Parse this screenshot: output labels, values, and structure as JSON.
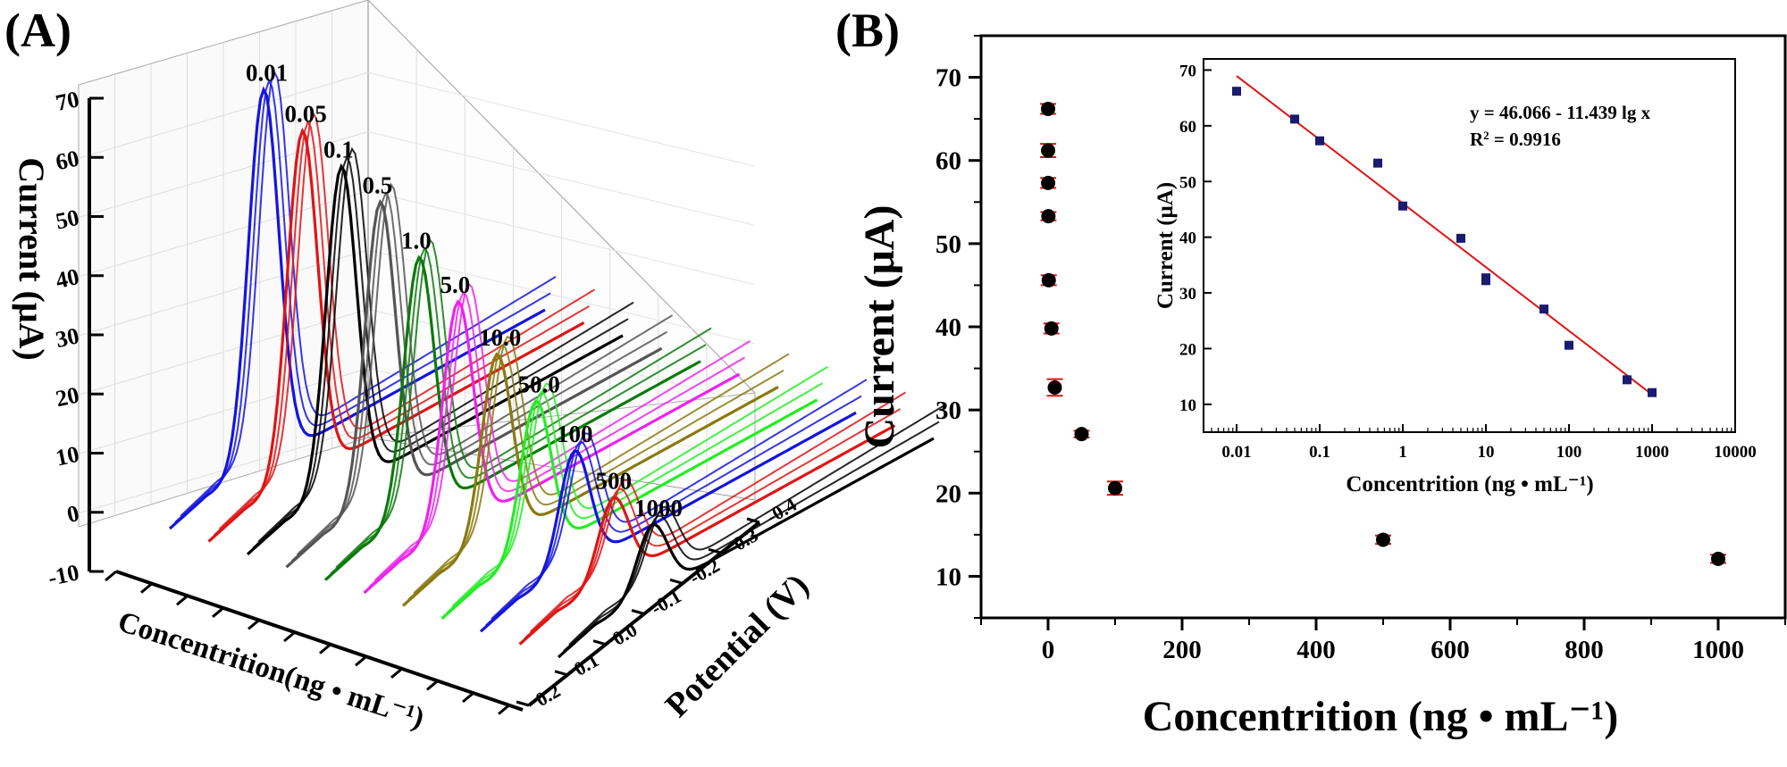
{
  "panels": {
    "a_label": "(A)",
    "b_label": "(B)"
  },
  "chart_data": [
    {
      "type": "line",
      "panel": "(A)",
      "xlabel": "Concentrition(ng • mL⁻¹)",
      "ylabel": "Current (μA)",
      "zlabel": "Potential (V)",
      "y_ticks": [
        "-10",
        "0",
        "10",
        "20",
        "30",
        "40",
        "50",
        "60",
        "70"
      ],
      "ylim": [
        -10,
        70
      ],
      "potential_ticks": [
        "-0.4",
        "-0.3",
        "-0.2",
        "-0.1",
        "0.0",
        "0.1",
        "0.2"
      ],
      "series": [
        {
          "name": "0.01",
          "color": "#1414e0",
          "peak": 66
        },
        {
          "name": "0.05",
          "color": "#e01414",
          "peak": 61
        },
        {
          "name": "0.1",
          "color": "#000000",
          "peak": 57
        },
        {
          "name": "0.5",
          "color": "#555555",
          "peak": 53
        },
        {
          "name": "1.0",
          "color": "#0c7a0c",
          "peak": 45.5
        },
        {
          "name": "5.0",
          "color": "#ee22ee",
          "peak": 40
        },
        {
          "name": "10.0",
          "color": "#8a7a10",
          "peak": 33
        },
        {
          "name": "50.0",
          "color": "#22ee22",
          "peak": 27
        },
        {
          "name": "100",
          "color": "#1414e0",
          "peak": 20.5
        },
        {
          "name": "500",
          "color": "#e01414",
          "peak": 14.5
        },
        {
          "name": "1000",
          "color": "#000000",
          "peak": 12
        }
      ]
    },
    {
      "type": "scatter",
      "panel": "(B)",
      "xlabel": "Concentrition (ng • mL⁻¹)",
      "ylabel": "Current (μA)",
      "xlim": [
        -100,
        1100
      ],
      "ylim": [
        5,
        75
      ],
      "x_ticks": [
        "0",
        "200",
        "400",
        "600",
        "800",
        "1000"
      ],
      "y_ticks": [
        "10",
        "20",
        "30",
        "40",
        "50",
        "60",
        "70"
      ],
      "x": [
        0.01,
        0.05,
        0.1,
        0.5,
        1.0,
        5.0,
        10.0,
        50.0,
        100,
        500,
        1000
      ],
      "y": [
        66.2,
        61.2,
        57.3,
        53.3,
        45.6,
        39.8,
        32.7,
        27.1,
        20.6,
        14.4,
        12.1
      ],
      "err": [
        0.6,
        0.8,
        0.6,
        0.5,
        0.6,
        0.6,
        1.0,
        0.4,
        0.8,
        0.5,
        0.5
      ],
      "marker_color": "#000000",
      "error_color": "#e01414"
    },
    {
      "type": "scatter",
      "panel": "(B) inset",
      "xlabel": "Concentrition (ng • mL⁻¹)",
      "ylabel": "Current (μA)",
      "x_scale": "log",
      "xlim": [
        0.004,
        10000
      ],
      "ylim": [
        5,
        72
      ],
      "x_ticks": [
        "0.01",
        "0.1",
        "1",
        "10",
        "100",
        "1000",
        "10000"
      ],
      "y_ticks": [
        "10",
        "20",
        "30",
        "40",
        "50",
        "60",
        "70"
      ],
      "x": [
        0.01,
        0.05,
        0.1,
        0.5,
        1.0,
        5.0,
        10.0,
        10.0,
        50.0,
        100,
        500,
        1000
      ],
      "y": [
        66.2,
        61.2,
        57.3,
        53.3,
        45.6,
        39.8,
        32.7,
        32.2,
        27.1,
        20.6,
        14.4,
        12.1
      ],
      "fit": {
        "intercept": 46.066,
        "slope": -11.439,
        "color": "#e01414"
      },
      "equation": "y = 46.066 - 11.439 lg x",
      "r2_label": "R",
      "r2_value": " = 0.9916",
      "marker_color": "#1a1a6e"
    }
  ]
}
